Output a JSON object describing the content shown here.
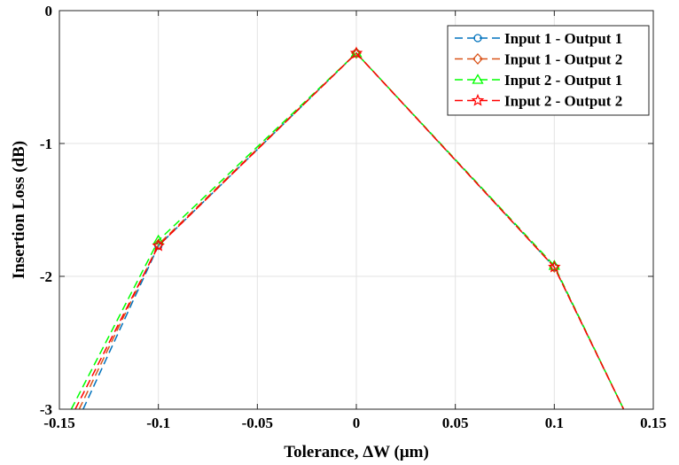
{
  "chart_data": {
    "type": "line",
    "title": "",
    "xlabel": "Tolerance, ΔW (μm)",
    "ylabel": "Insertion Loss (dB)",
    "xlim": [
      -0.15,
      0.15
    ],
    "ylim": [
      -3,
      0
    ],
    "xticks": [
      -0.15,
      -0.1,
      -0.05,
      0,
      0.05,
      0.1,
      0.15
    ],
    "xtick_labels": [
      "-0.15",
      "-0.1",
      "-0.05",
      "0",
      "0.05",
      "0.1",
      "0.15"
    ],
    "yticks": [
      0,
      -1,
      -2,
      -3
    ],
    "ytick_labels": [
      "0",
      "-1",
      "-2",
      "-3"
    ],
    "grid": true,
    "legend_position": "top-right",
    "series": [
      {
        "name": "Input 1 - Output 1",
        "color": "#0072BD",
        "marker": "circle",
        "line_style": "dashed",
        "points": [
          [
            -0.138,
            -3.0
          ],
          [
            -0.1,
            -1.77
          ],
          [
            0,
            -0.32
          ],
          [
            0.1,
            -1.93
          ],
          [
            0.135,
            -3.0
          ]
        ]
      },
      {
        "name": "Input 1 - Output 2",
        "color": "#D95319",
        "marker": "diamond",
        "line_style": "dashed",
        "points": [
          [
            -0.14,
            -3.0
          ],
          [
            -0.1,
            -1.76
          ],
          [
            0,
            -0.32
          ],
          [
            0.1,
            -1.93
          ],
          [
            0.135,
            -3.0
          ]
        ]
      },
      {
        "name": "Input 2 - Output 1",
        "color": "#00FF00",
        "marker": "triangle",
        "line_style": "dashed",
        "points": [
          [
            -0.144,
            -3.0
          ],
          [
            -0.1,
            -1.73
          ],
          [
            0,
            -0.32
          ],
          [
            0.1,
            -1.92
          ],
          [
            0.135,
            -3.0
          ]
        ]
      },
      {
        "name": "Input 2 - Output 2",
        "color": "#FF0000",
        "marker": "star",
        "line_style": "dashed",
        "points": [
          [
            -0.142,
            -3.0
          ],
          [
            -0.1,
            -1.77
          ],
          [
            0,
            -0.32
          ],
          [
            0.1,
            -1.93
          ],
          [
            0.135,
            -3.0
          ]
        ]
      }
    ]
  }
}
